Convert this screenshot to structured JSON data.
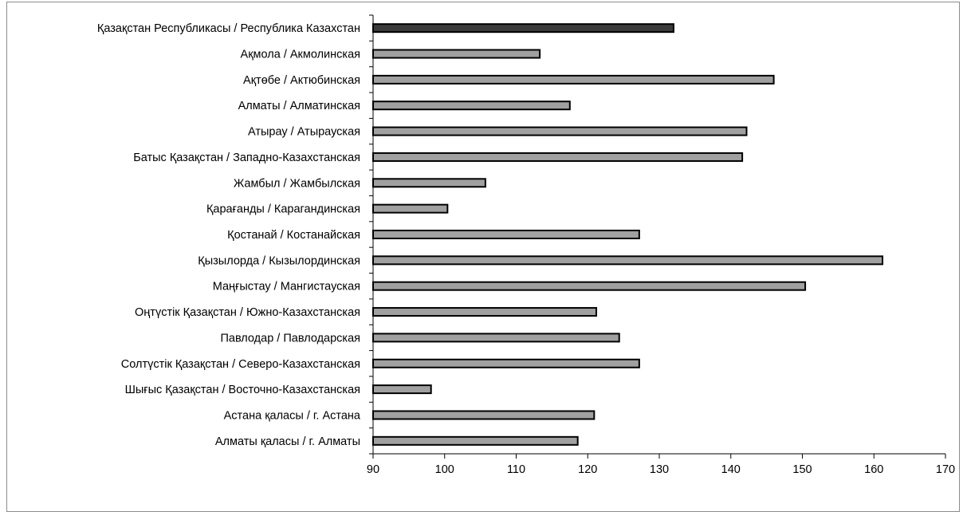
{
  "chart_data": {
    "type": "bar",
    "orientation": "horizontal",
    "categories": [
      "Қазақстан Республикасы / Республика Казахстан",
      "Ақмола / Акмолинская",
      "Ақтөбе / Актюбинская",
      "Алматы / Алматинская",
      "Атырау / Атырауская",
      "Батыс Қазақстан / Западно-Казахстанская",
      "Жамбыл / Жамбылская",
      "Қарағанды / Карагандинская",
      "Қостанай / Костанайская",
      "Қызылорда / Кызылординская",
      "Маңғыстау / Мангистауская",
      "Оңтүстік Қазақстан / Южно-Казахстанская",
      "Павлодар / Павлодарская",
      "Солтүстік Қазақстан / Северо-Казахстанская",
      "Шығыс Қазақстан / Восточно-Казахстанская",
      "Астана қаласы / г. Астана",
      "Алматы қаласы / г. Алматы"
    ],
    "values": [
      132.0,
      113.3,
      146.0,
      117.5,
      142.2,
      141.6,
      105.7,
      100.4,
      127.2,
      161.2,
      150.4,
      121.2,
      124.4,
      127.2,
      98.1,
      120.9,
      118.6
    ],
    "highlight_index": 0,
    "xlim": [
      90,
      170
    ],
    "xticks": [
      "90",
      "100",
      "110",
      "120",
      "130",
      "140",
      "150",
      "160",
      "170"
    ],
    "title": "",
    "xlabel": "",
    "ylabel": "",
    "grid": false,
    "legend": "none",
    "colors": {
      "bar": "#a0a0a0",
      "highlight": "#3a3a3a",
      "bar_edge": "#000000",
      "axis": "#000000"
    }
  }
}
